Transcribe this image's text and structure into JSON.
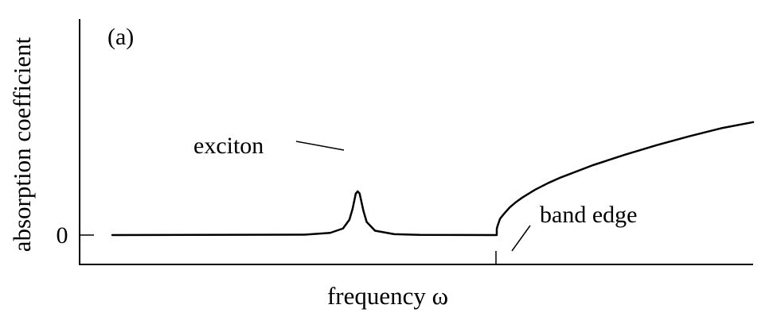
{
  "chart_data": {
    "type": "line",
    "panel_label": "(a)",
    "xlabel": "frequency ω",
    "ylabel": "absorption coefficient",
    "yticks": [
      {
        "value": 0,
        "label": "0"
      }
    ],
    "xlim": [
      0,
      100
    ],
    "ylim": [
      -0.6,
      5.4
    ],
    "band_edge_x": 60,
    "x_ticks_marked": [
      60
    ],
    "series": [
      {
        "points": [
          [
            0,
            0
          ],
          [
            30,
            0.02
          ],
          [
            34,
            0.1
          ],
          [
            36,
            0.3
          ],
          [
            37,
            0.7
          ],
          [
            37.5,
            1.2
          ],
          [
            38,
            1.9
          ],
          [
            38.3,
            2.0
          ],
          [
            38.6,
            1.9
          ],
          [
            39.2,
            1.1
          ],
          [
            39.7,
            0.6
          ],
          [
            41,
            0.2
          ],
          [
            44,
            0.04
          ],
          [
            48,
            0.01
          ],
          [
            60,
            0
          ],
          [
            60.001,
            0.28
          ],
          [
            60.1,
            0.4
          ],
          [
            60.5,
            0.74
          ],
          [
            61,
            0.93
          ],
          [
            62,
            1.26
          ],
          [
            63,
            1.51
          ],
          [
            64,
            1.72
          ],
          [
            66,
            2.08
          ],
          [
            68,
            2.38
          ],
          [
            70,
            2.64
          ],
          [
            75,
            3.2
          ],
          [
            80,
            3.68
          ],
          [
            85,
            4.12
          ],
          [
            90,
            4.52
          ],
          [
            95,
            4.89
          ],
          [
            100,
            5.17
          ]
        ]
      }
    ],
    "annotations": [
      {
        "text": "exciton",
        "x": 38.3,
        "y": 2.0
      },
      {
        "text": "band edge",
        "x": 60,
        "y": 0
      }
    ],
    "colors": {
      "line": "#000000",
      "background": "#ffffff"
    }
  }
}
